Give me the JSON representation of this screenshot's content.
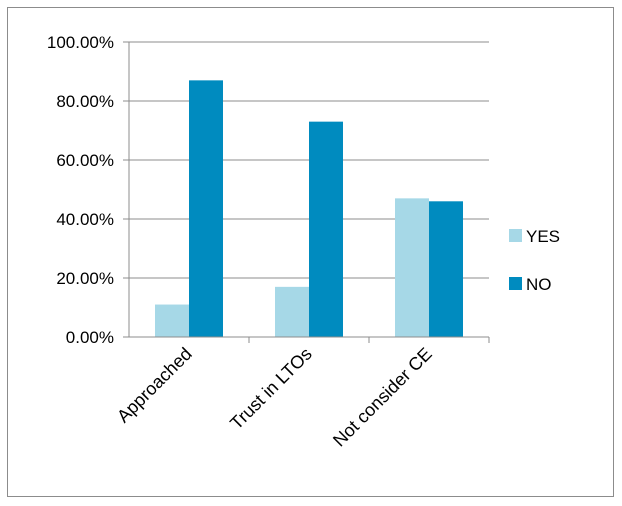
{
  "chart_data": {
    "type": "bar",
    "categories": [
      "Approached",
      "Trust in LTOs",
      "Not consider CE"
    ],
    "series": [
      {
        "name": "YES",
        "values": [
          11.0,
          17.0,
          47.0
        ],
        "color": "#a6d8e7"
      },
      {
        "name": "NO",
        "values": [
          87.0,
          73.0,
          46.0
        ],
        "color": "#008bbf"
      }
    ],
    "y_ticks": [
      "0.00%",
      "20.00%",
      "40.00%",
      "60.00%",
      "80.00%",
      "100.00%"
    ],
    "ylim": [
      0,
      100
    ],
    "grid": true,
    "legend": "right",
    "title": "",
    "xlabel": "",
    "ylabel": ""
  }
}
